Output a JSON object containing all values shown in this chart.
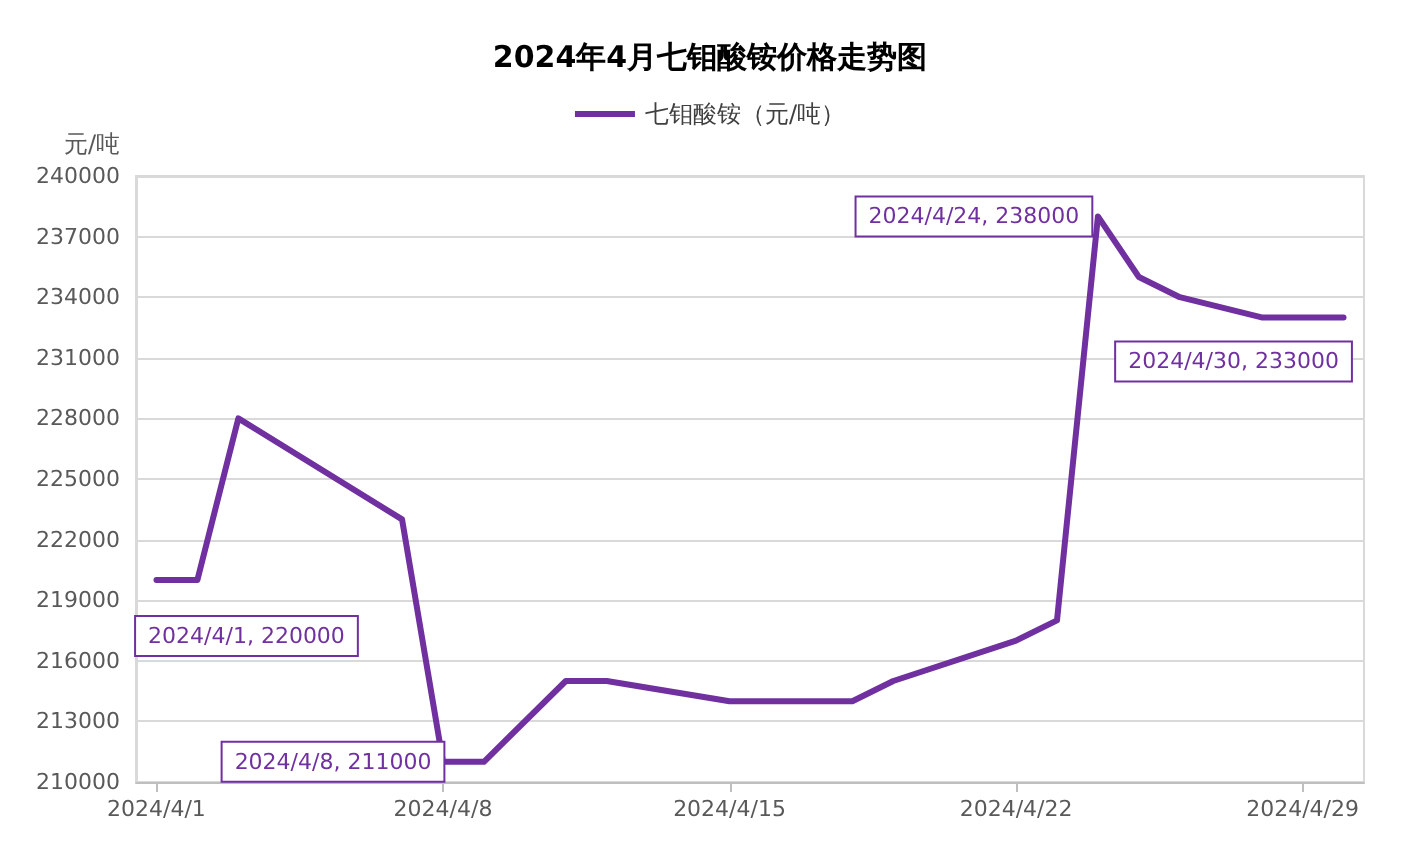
{
  "chart_data": {
    "type": "line",
    "title": "2024年4月七钼酸铵价格走势图",
    "ylabel": "元/吨",
    "x": [
      "2024-04-01",
      "2024-04-02",
      "2024-04-03",
      "2024-04-07",
      "2024-04-08",
      "2024-04-09",
      "2024-04-11",
      "2024-04-12",
      "2024-04-15",
      "2024-04-18",
      "2024-04-19",
      "2024-04-22",
      "2024-04-23",
      "2024-04-24",
      "2024-04-25",
      "2024-04-26",
      "2024-04-28",
      "2024-04-30"
    ],
    "series": [
      {
        "name": "七钼酸铵（元/吨）",
        "color": "#7030a0",
        "values": [
          220000,
          220000,
          228000,
          223000,
          211000,
          211000,
          215000,
          215000,
          214000,
          214000,
          215000,
          217000,
          218000,
          238000,
          235000,
          234000,
          233000,
          233000
        ]
      }
    ],
    "xlim": [
      "2024-03-31T12:00",
      "2024-04-30T12:00"
    ],
    "xticks": [
      {
        "value": "2024-04-01",
        "label": "2024/4/1"
      },
      {
        "value": "2024-04-08",
        "label": "2024/4/8"
      },
      {
        "value": "2024-04-15",
        "label": "2024/4/15"
      },
      {
        "value": "2024-04-22",
        "label": "2024/4/22"
      },
      {
        "value": "2024-04-29",
        "label": "2024/4/29"
      }
    ],
    "ylim": [
      210000,
      240000
    ],
    "yticks": [
      210000,
      213000,
      216000,
      219000,
      222000,
      225000,
      228000,
      231000,
      234000,
      237000,
      240000
    ],
    "annotations": [
      {
        "text": "2024/4/1, 220000",
        "x": "2024-04-01",
        "y": 220000
      },
      {
        "text": "2024/4/8, 211000",
        "x": "2024-04-08",
        "y": 211000
      },
      {
        "text": "2024/4/24, 238000",
        "x": "2024-04-24",
        "y": 238000
      },
      {
        "text": "2024/4/30, 233000",
        "x": "2024-04-30",
        "y": 233000
      }
    ],
    "grid": "y",
    "legend": "top",
    "marker": "none",
    "line_style": "solid"
  }
}
